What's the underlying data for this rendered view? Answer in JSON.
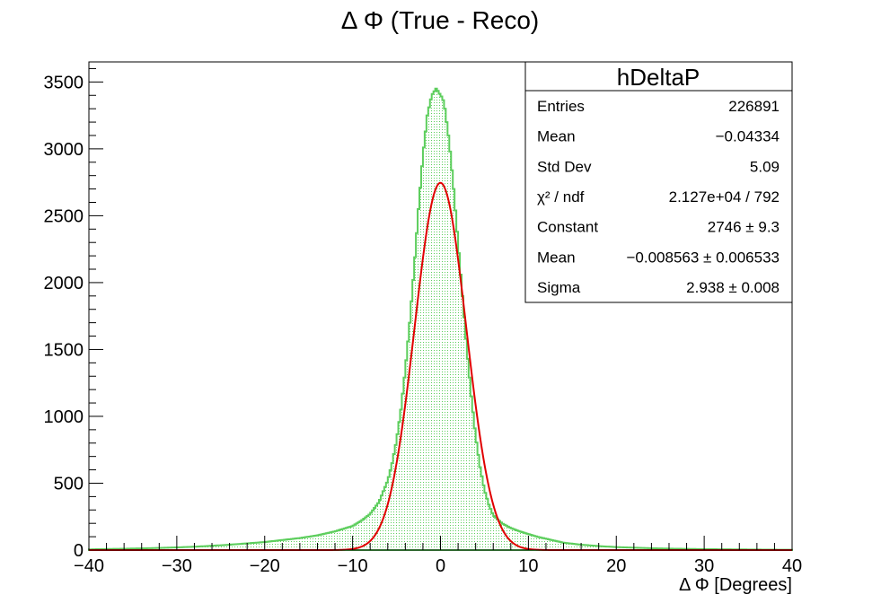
{
  "chart_data": {
    "type": "histogram",
    "title": "Δ Φ (True - Reco)",
    "xlabel": "Δ Φ [Degrees]",
    "ylabel": "",
    "xlim": [
      -40,
      40
    ],
    "ylim": [
      0,
      3650
    ],
    "x_ticks": [
      -40,
      -30,
      -20,
      -10,
      0,
      10,
      20,
      30,
      40
    ],
    "x_tick_labels": [
      "−40",
      "−30",
      "−20",
      "−10",
      "0",
      "10",
      "20",
      "30",
      "40"
    ],
    "y_ticks": [
      0,
      500,
      1000,
      1500,
      2000,
      2500,
      3000,
      3500
    ],
    "y_tick_labels": [
      "0",
      "500",
      "1000",
      "1500",
      "2000",
      "2500",
      "3000",
      "3500"
    ],
    "grid": false,
    "histogram": {
      "color": "#5dce5d",
      "x": [
        -40,
        -38,
        -36,
        -34,
        -32,
        -30,
        -28,
        -26,
        -24,
        -22,
        -20,
        -18,
        -16,
        -14,
        -13,
        -12,
        -11,
        -10,
        -9,
        -8,
        -7,
        -6,
        -5.5,
        -5,
        -4.5,
        -4,
        -3.5,
        -3,
        -2.5,
        -2,
        -1.5,
        -1,
        -0.5,
        -0.25,
        0,
        0.25,
        0.5,
        1,
        1.5,
        2,
        2.5,
        3,
        3.5,
        4,
        4.5,
        5,
        5.5,
        6,
        7,
        8,
        9,
        10,
        11,
        12,
        13,
        14,
        16,
        18,
        20,
        22,
        24,
        26,
        28,
        30,
        32,
        34,
        36,
        38,
        40
      ],
      "y": [
        5,
        8,
        10,
        13,
        16,
        20,
        25,
        32,
        40,
        50,
        60,
        75,
        90,
        110,
        125,
        140,
        160,
        180,
        220,
        270,
        360,
        520,
        650,
        820,
        1050,
        1350,
        1700,
        2100,
        2550,
        2950,
        3250,
        3400,
        3450,
        3430,
        3400,
        3380,
        3300,
        3050,
        2700,
        2300,
        1900,
        1500,
        1150,
        850,
        620,
        450,
        340,
        260,
        200,
        165,
        140,
        120,
        100,
        85,
        70,
        55,
        40,
        30,
        22,
        18,
        14,
        11,
        9,
        7,
        6,
        5,
        4,
        3,
        2
      ]
    },
    "fit": {
      "function": "gaus",
      "color": "#e00000",
      "constant": 2746,
      "mean": -0.008563,
      "sigma": 2.938
    },
    "stats_box": {
      "title": "hDeltaP",
      "rows": [
        {
          "label": "Entries",
          "value": "226891"
        },
        {
          "label": "Mean",
          "value": "−0.04334"
        },
        {
          "label": "Std Dev",
          "value": "5.09"
        },
        {
          "label": "χ² / ndf",
          "value": "2.127e+04 / 792"
        },
        {
          "label": "Constant",
          "value": "2746 ± 9.3"
        },
        {
          "label": "Mean",
          "value": "−0.008563 ± 0.006533"
        },
        {
          "label": "Sigma",
          "value": "2.938 ± 0.008"
        }
      ]
    }
  }
}
